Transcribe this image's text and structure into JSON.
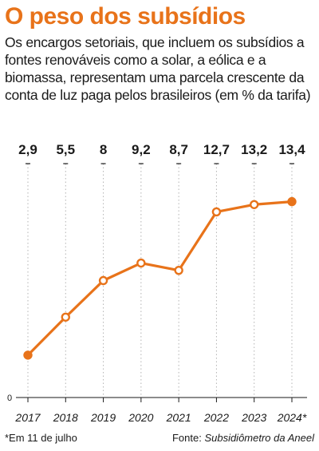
{
  "header": {
    "title": "O peso dos subsídios",
    "subtitle": "Os encargos setoriais, que incluem os subsídios a fontes renováveis como a solar, a eólica e a biomassa, representam uma parcela crescente da conta de luz paga pelos brasileiros (em % da tarifa)"
  },
  "footer": {
    "footnote": "*Em 11 de julho",
    "source_prefix": "Fonte: ",
    "source_name": "Subsidiômetro da Aneel"
  },
  "colors": {
    "accent": "#e8731a",
    "text": "#1a1a1a",
    "grid": "#b3b3b3"
  },
  "chart_data": {
    "type": "line",
    "categories": [
      "2017",
      "2018",
      "2019",
      "2020",
      "2021",
      "2022",
      "2023",
      "2024*"
    ],
    "values": [
      2.9,
      5.5,
      8,
      9.2,
      8.7,
      12.7,
      13.2,
      13.4
    ],
    "value_labels": [
      "2,9",
      "5,5",
      "8",
      "9,2",
      "8,7",
      "12,7",
      "13,2",
      "13,4"
    ],
    "ylim": [
      0,
      16
    ],
    "y_ticks": [
      "0"
    ],
    "grid": "vertical dotted",
    "title": "",
    "xlabel": "",
    "ylabel": ""
  }
}
